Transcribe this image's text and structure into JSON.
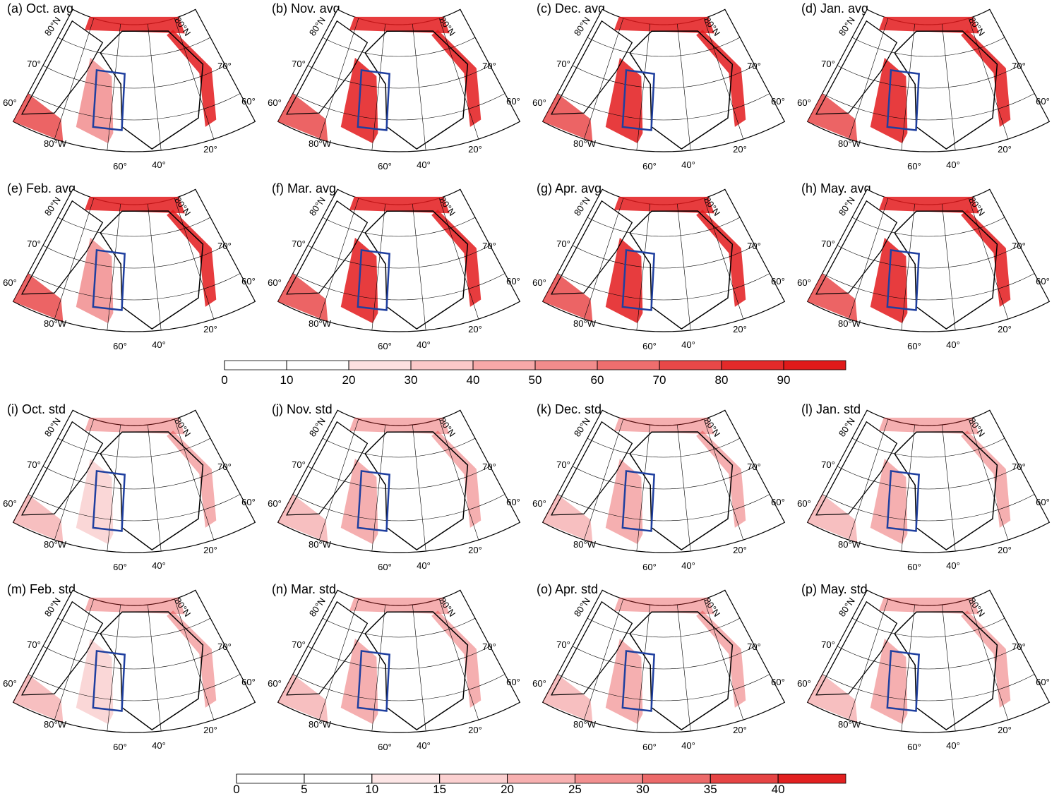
{
  "panels": [
    {
      "title": "(a) Oct. avg"
    },
    {
      "title": "(b) Nov. avg"
    },
    {
      "title": "(c) Dec. avg"
    },
    {
      "title": "(d) Jan. avg"
    },
    {
      "title": "(e) Feb. avg"
    },
    {
      "title": "(f) Mar. avg"
    },
    {
      "title": "(g) Apr. avg"
    },
    {
      "title": "(h) May. avg"
    },
    {
      "title": "(i) Oct. std"
    },
    {
      "title": "(j) Nov. std"
    },
    {
      "title": "(k) Dec. std"
    },
    {
      "title": "(l) Jan. std"
    },
    {
      "title": "(m) Feb. std"
    },
    {
      "title": "(n) Mar. std"
    },
    {
      "title": "(o) Apr. std"
    },
    {
      "title": "(p) May. std"
    }
  ],
  "map_labels": {
    "left": [
      "80°N",
      "70°",
      "60°"
    ],
    "right": [
      "80°N",
      "70°",
      "60°"
    ],
    "bottom": [
      "80°W",
      "60°",
      "40°",
      "20°"
    ]
  },
  "colorbars": [
    {
      "ticks": [
        0,
        10,
        20,
        30,
        40,
        50,
        60,
        70,
        80,
        90
      ],
      "colors": [
        "#ffffff",
        "#ffffff",
        "#fde0e0",
        "#fbc8c8",
        "#f7a8a8",
        "#f28c8c",
        "#ee6e6e",
        "#e84848",
        "#e42a2a",
        "#e01a1a"
      ]
    },
    {
      "ticks": [
        0,
        5,
        10,
        15,
        20,
        25,
        30,
        35,
        40
      ],
      "colors": [
        "#ffffff",
        "#ffffff",
        "#fde6e6",
        "#fbd0d0",
        "#f7b0b0",
        "#f29090",
        "#ec6a6a",
        "#e64444",
        "#e22020"
      ]
    }
  ]
}
